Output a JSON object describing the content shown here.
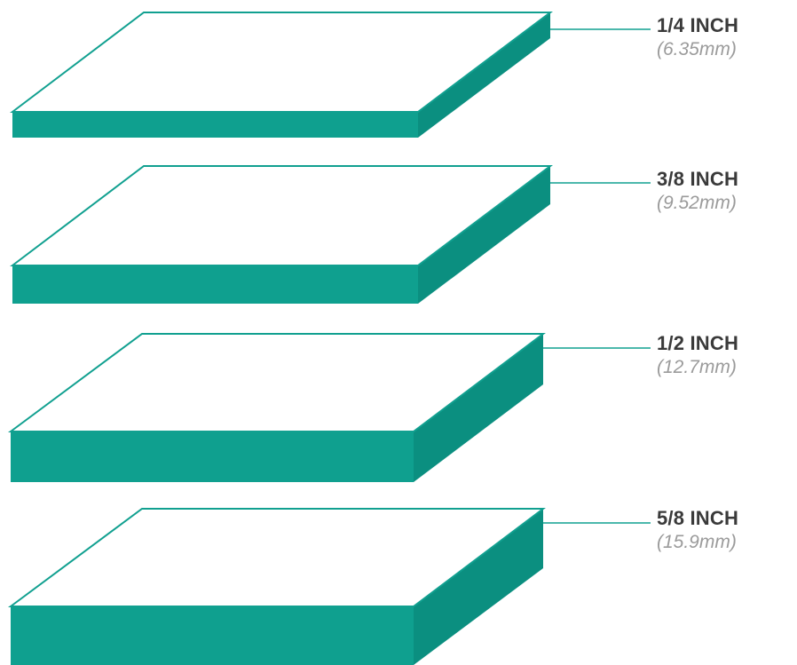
{
  "colors": {
    "accent": "#0fa08f",
    "accent_dark": "#0b8f80",
    "label_primary": "#3a3a3a",
    "label_secondary": "#9b9b9b",
    "background": "#ffffff"
  },
  "boards": [
    {
      "thickness_label": "1/4 INCH",
      "metric_label": "(6.35mm)",
      "thickness_mm": 6.35
    },
    {
      "thickness_label": "3/8 INCH",
      "metric_label": "(9.52mm)",
      "thickness_mm": 9.52
    },
    {
      "thickness_label": "1/2 INCH",
      "metric_label": "(12.7mm)",
      "thickness_mm": 12.7
    },
    {
      "thickness_label": "5/8 INCH",
      "metric_label": "(15.9mm)",
      "thickness_mm": 15.9
    }
  ]
}
